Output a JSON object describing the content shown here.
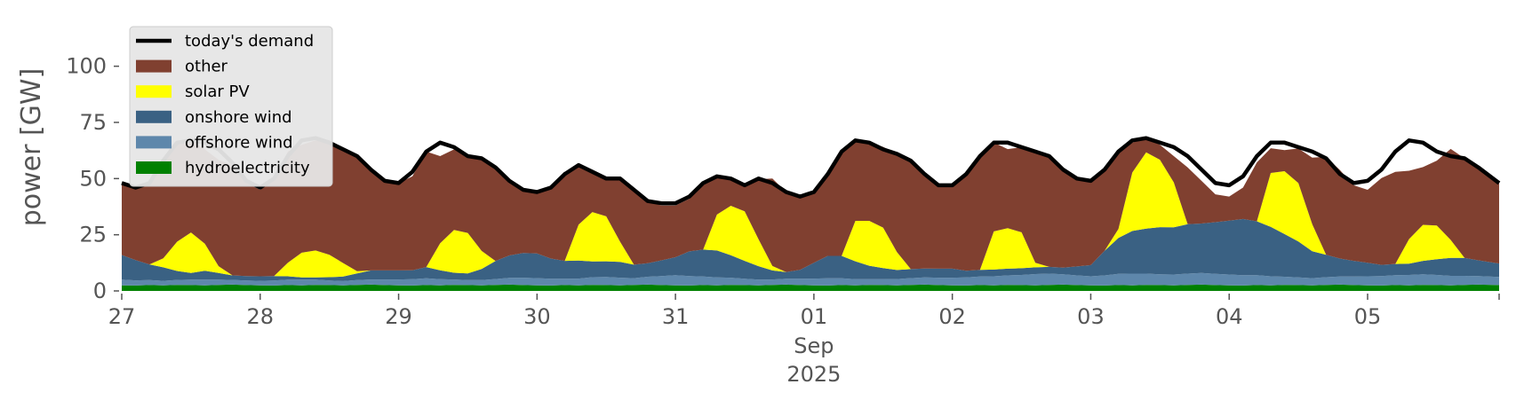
{
  "chart_data": {
    "type": "area",
    "title": "",
    "ylabel": "power [GW]",
    "xlabel": "",
    "ylim": [
      0,
      120
    ],
    "xlim": [
      0,
      9.95
    ],
    "y_ticks": [
      0,
      25,
      50,
      75,
      100
    ],
    "y_tick_labels": [
      "0",
      "25",
      "50",
      "75",
      "100"
    ],
    "x_ticks": [
      0,
      1,
      2,
      3,
      4,
      5,
      6,
      7,
      8,
      9
    ],
    "x_tick_labels": [
      "27",
      "28",
      "29",
      "30",
      "31",
      "01",
      "02",
      "03",
      "04",
      "05"
    ],
    "x_sublabels": [
      {
        "x": 5,
        "lines": [
          "Sep",
          "2025"
        ]
      }
    ],
    "grid": false,
    "background": "#ffffff",
    "x_unit": "days since 27 Aug 2025",
    "legend": {
      "position": "top-left",
      "entries": [
        {
          "label": "today's demand",
          "kind": "line",
          "color": "#000000"
        },
        {
          "label": "other",
          "kind": "patch",
          "color": "#804030"
        },
        {
          "label": "solar PV",
          "kind": "patch",
          "color": "#ffff00"
        },
        {
          "label": "onshore wind",
          "kind": "patch",
          "color": "#3a6183"
        },
        {
          "label": "offshore wind",
          "kind": "patch",
          "color": "#5e87ab"
        },
        {
          "label": "hydroelectricity",
          "kind": "patch",
          "color": "#008000"
        }
      ]
    },
    "demand_series": {
      "name": "today's demand",
      "color": "#000000",
      "x": [
        0,
        0.1,
        0.2,
        0.3,
        0.4,
        0.5,
        0.6,
        0.7,
        0.8,
        0.9,
        1,
        1.1,
        1.2,
        1.3,
        1.4,
        1.5,
        1.6,
        1.7,
        1.8,
        1.9,
        2,
        2.1,
        2.2,
        2.3,
        2.4,
        2.5,
        2.6,
        2.7,
        2.8,
        2.9,
        3,
        3.1,
        3.2,
        3.3,
        3.4,
        3.5,
        3.6,
        3.7,
        3.8,
        3.9,
        4,
        4.1,
        4.2,
        4.3,
        4.4,
        4.5,
        4.6,
        4.7,
        4.8,
        4.9,
        5,
        5.1,
        5.2,
        5.3,
        5.4,
        5.5,
        5.6,
        5.7,
        5.8,
        5.9,
        6,
        6.1,
        6.2,
        6.3,
        6.4,
        6.5,
        6.6,
        6.7,
        6.8,
        6.9,
        7,
        7.1,
        7.2,
        7.3,
        7.4,
        7.5,
        7.6,
        7.7,
        7.8,
        7.9,
        8,
        8.1,
        8.2,
        8.3,
        8.4,
        8.5,
        8.6,
        8.7,
        8.8,
        8.9,
        9,
        9.1,
        9.2,
        9.3,
        9.4,
        9.5,
        9.6,
        9.7,
        9.8,
        9.95
      ],
      "values": [
        48,
        46,
        48,
        58,
        66,
        67,
        66,
        63,
        57,
        49,
        46,
        50,
        60,
        67,
        68,
        66,
        63,
        60,
        54,
        49,
        48,
        53,
        62,
        66,
        64,
        60,
        59,
        55,
        49,
        45,
        44,
        46,
        52,
        56,
        53,
        50,
        50,
        45,
        40,
        39,
        39,
        42,
        48,
        51,
        50,
        47,
        50,
        48,
        44,
        42,
        44,
        52,
        62,
        67,
        66,
        63,
        61,
        58,
        52,
        47,
        47,
        52,
        60,
        66,
        66,
        64,
        62,
        60,
        54,
        50,
        49,
        54,
        62,
        67,
        68,
        66,
        64,
        60,
        54,
        48,
        47,
        51,
        60,
        66,
        66,
        64,
        62,
        59,
        52,
        48,
        49,
        54,
        62,
        67,
        66,
        62,
        60,
        59,
        55,
        48
      ]
    },
    "stack_series": [
      {
        "name": "hydroelectricity",
        "color": "#008000",
        "values": [
          2.5,
          2.4,
          2.6,
          2.5,
          2.7,
          2.6,
          2.5,
          2.7,
          2.8,
          2.6,
          2.5,
          2.4,
          2.6,
          2.5,
          2.7,
          2.6,
          2.5,
          2.7,
          2.8,
          2.6,
          2.5,
          2.4,
          2.6,
          2.5,
          2.7,
          2.6,
          2.5,
          2.7,
          2.8,
          2.6,
          2.5,
          2.4,
          2.6,
          2.5,
          2.7,
          2.6,
          2.5,
          2.7,
          2.8,
          2.6,
          2.5,
          2.4,
          2.6,
          2.5,
          2.7,
          2.6,
          2.5,
          2.7,
          2.8,
          2.6,
          2.5,
          2.4,
          2.6,
          2.5,
          2.7,
          2.6,
          2.5,
          2.7,
          2.8,
          2.6,
          2.5,
          2.4,
          2.6,
          2.5,
          2.7,
          2.6,
          2.5,
          2.7,
          2.8,
          2.6,
          2.5,
          2.4,
          2.6,
          2.5,
          2.7,
          2.6,
          2.5,
          2.7,
          2.8,
          2.6,
          2.5,
          2.4,
          2.6,
          2.5,
          2.7,
          2.6,
          2.5,
          2.7,
          2.8,
          2.6,
          2.5,
          2.4,
          2.6,
          2.5,
          2.7,
          2.6,
          2.5,
          2.7,
          2.8,
          2.6
        ]
      },
      {
        "name": "offshore wind",
        "color": "#5e87ab",
        "values": [
          2.5,
          2.3,
          2.2,
          2.0,
          2.2,
          2.4,
          2.5,
          2.3,
          2.1,
          2.0,
          2.0,
          2.2,
          2.4,
          2.5,
          2.3,
          2.0,
          1.9,
          2.1,
          2.3,
          2.5,
          2.6,
          2.8,
          3.0,
          2.7,
          2.4,
          2.2,
          2.3,
          2.6,
          3.0,
          3.3,
          3.2,
          3.0,
          2.8,
          3.0,
          3.4,
          3.6,
          3.4,
          3.0,
          3.5,
          4.0,
          4.5,
          4.2,
          3.8,
          3.5,
          3.2,
          2.8,
          2.5,
          2.4,
          2.6,
          2.8,
          3.0,
          3.2,
          3.0,
          2.7,
          2.5,
          2.6,
          2.8,
          3.0,
          3.2,
          3.3,
          3.4,
          3.6,
          3.8,
          4.0,
          4.2,
          4.5,
          5.0,
          5.0,
          4.6,
          4.3,
          4.0,
          4.5,
          5.0,
          5.2,
          5.0,
          4.8,
          4.8,
          5.0,
          5.2,
          5.0,
          4.8,
          4.6,
          4.4,
          4.0,
          3.6,
          3.4,
          3.2,
          3.4,
          3.6,
          3.8,
          4.0,
          4.2,
          4.4,
          4.6,
          4.7,
          4.5,
          4.2,
          4.0,
          3.8,
          3.6
        ]
      },
      {
        "name": "onshore wind",
        "color": "#3a6183",
        "values": [
          11,
          9,
          7,
          6,
          4,
          3,
          4,
          3,
          2,
          2,
          2,
          2,
          1.5,
          1,
          1,
          1.5,
          2,
          3,
          4,
          4,
          4,
          4,
          5,
          4,
          3,
          3,
          5,
          8,
          10,
          11,
          11,
          9,
          8,
          8,
          7,
          7,
          7,
          6,
          6,
          7,
          8,
          11,
          12,
          12,
          10,
          8,
          6,
          4,
          3,
          4,
          7,
          10,
          10,
          8,
          6,
          5,
          4,
          4,
          4,
          4,
          4,
          3,
          3,
          3,
          3,
          3,
          3,
          3,
          3,
          4,
          5,
          11,
          16,
          19,
          20,
          21,
          21,
          22,
          22,
          23,
          24,
          25,
          24,
          22,
          19,
          16,
          12,
          10,
          8,
          7,
          6,
          5,
          5,
          5,
          6,
          7,
          8,
          8,
          7,
          6
        ]
      },
      {
        "name": "solar PV",
        "color": "#ffff00",
        "values": [
          0,
          0,
          0,
          4,
          13,
          18,
          12,
          3,
          0,
          0,
          0,
          0,
          6,
          11,
          12,
          10,
          6,
          1,
          0,
          0,
          0,
          0,
          0,
          12,
          19,
          18,
          8,
          0,
          0,
          0,
          0,
          0,
          0,
          16,
          22,
          20,
          9,
          0,
          0,
          0,
          0,
          0,
          0,
          16,
          22,
          22,
          12,
          2,
          0,
          0,
          0,
          0,
          0,
          18,
          20,
          18,
          8,
          0,
          0,
          0,
          0,
          0,
          0,
          17,
          18,
          16,
          2,
          0,
          0,
          0,
          0,
          0,
          4,
          26,
          34,
          30,
          20,
          0,
          0,
          0,
          0,
          0,
          0,
          24,
          28,
          26,
          12,
          0,
          0,
          0,
          0,
          0,
          0,
          11,
          16,
          15,
          8,
          0,
          0,
          0
        ]
      },
      {
        "name": "other",
        "color": "#804030",
        "values": [
          32,
          32.3,
          36.2,
          43.5,
          44.1,
          41.0,
          42.0,
          47.3,
          49.1,
          41.4,
          38.5,
          42.6,
          49.5,
          48.0,
          49.0,
          50.9,
          50.6,
          51.2,
          44.9,
          39.9,
          38.9,
          41.8,
          51.4,
          38.8,
          35.9,
          34.2,
          41.2,
          41.7,
          33.2,
          28.1,
          27.3,
          31.6,
          38.6,
          26.5,
          18.9,
          16.8,
          28.1,
          32.3,
          27.7,
          24.4,
          23.0,
          23.4,
          29.6,
          17.0,
          12.1,
          11.6,
          26.7,
          38.9,
          35.6,
          32.6,
          31.5,
          36.4,
          46.4,
          35.8,
          34.8,
          35.9,
          43.7,
          48.3,
          43.0,
          37.9,
          37.1,
          43.0,
          50.6,
          39.5,
          35.2,
          37.9,
          49.5,
          49.3,
          43.6,
          39.1,
          37.5,
          35.1,
          35.4,
          13.3,
          6.3,
          6.6,
          11.7,
          25.3,
          19.0,
          12.4,
          10.7,
          14.0,
          26.2,
          11.0,
          9.4,
          15.4,
          29.6,
          43.6,
          39.4,
          33.6,
          32.5,
          38.6,
          41.0,
          30.4,
          25.7,
          28.9,
          40.5,
          44.3,
          40.4,
          35.8
        ]
      }
    ]
  }
}
